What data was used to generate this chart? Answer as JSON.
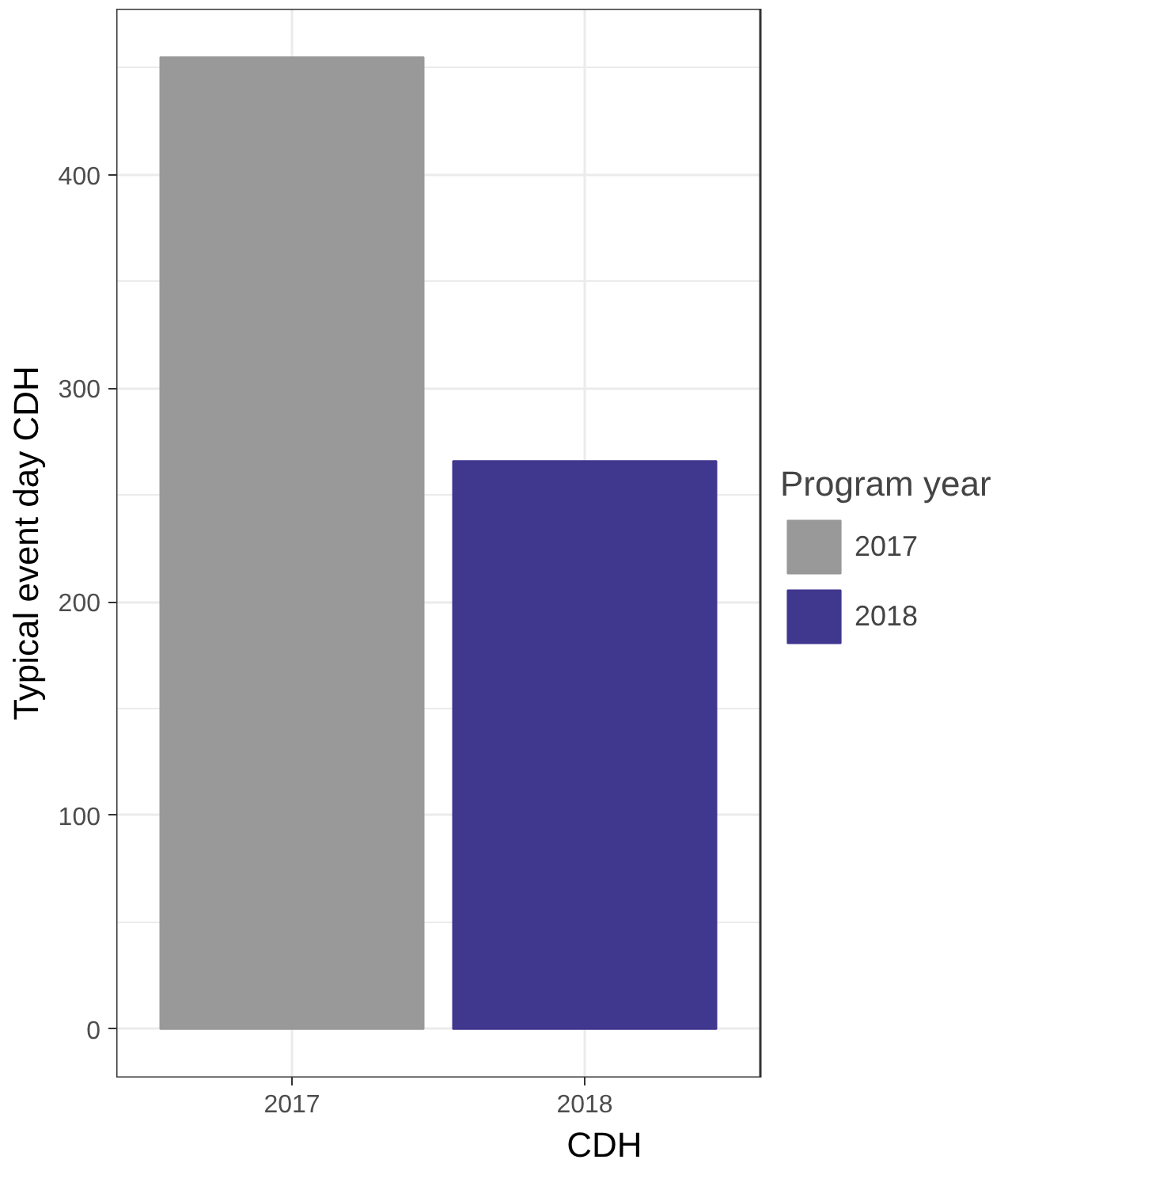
{
  "chart_data": {
    "type": "bar",
    "xlabel": "CDH",
    "ylabel": "Typical event day CDH",
    "legend_title": "Program year",
    "categories": [
      "2017",
      "2018"
    ],
    "series": [
      {
        "name": "2017",
        "color": "#999999",
        "values": [
          455,
          null
        ]
      },
      {
        "name": "2018",
        "color": "#40378f",
        "values": [
          null,
          266
        ]
      }
    ],
    "ylim": [
      -22.75,
      477.75
    ],
    "yticks": [
      0,
      100,
      200,
      300,
      400
    ],
    "grid": true,
    "legend": "right"
  }
}
